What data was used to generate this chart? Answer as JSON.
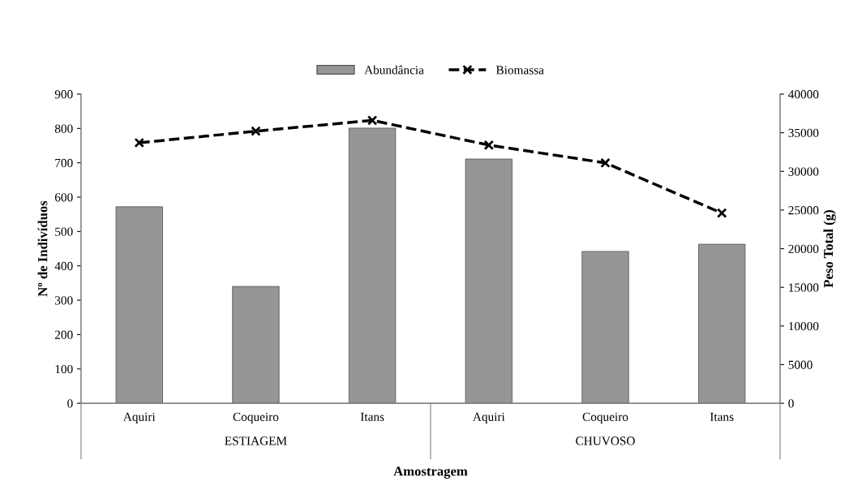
{
  "chart_data": {
    "type": "bar",
    "categories": [
      "Aquiri",
      "Coqueiro",
      "Itans",
      "Aquiri",
      "Coqueiro",
      "Itans"
    ],
    "series": [
      {
        "name": "Abundância",
        "color": "#969696",
        "values": [
          572,
          340,
          801,
          711,
          442,
          463
        ]
      },
      {
        "name": "Biomassa",
        "type": "line",
        "axis": "y2",
        "color": "#000000",
        "marker": "cross",
        "line_style": "dashed",
        "values": [
          33700,
          35200,
          36600,
          33400,
          31100,
          24600
        ]
      }
    ],
    "xlabel": "Amostragem",
    "ylabel": "Nº de Indivíduos",
    "y2label": "Peso Total (g)",
    "annotations": [
      "ESTIAGEM",
      "CHUVOSO"
    ],
    "ylim": [
      0,
      900
    ],
    "yticks": [
      0,
      100,
      200,
      300,
      400,
      500,
      600,
      700,
      800,
      900
    ],
    "y2lim": [
      0,
      40000
    ],
    "y2ticks": [
      0,
      5000,
      10000,
      15000,
      20000,
      25000,
      30000,
      35000,
      40000
    ],
    "legend": "top",
    "grid": false
  }
}
